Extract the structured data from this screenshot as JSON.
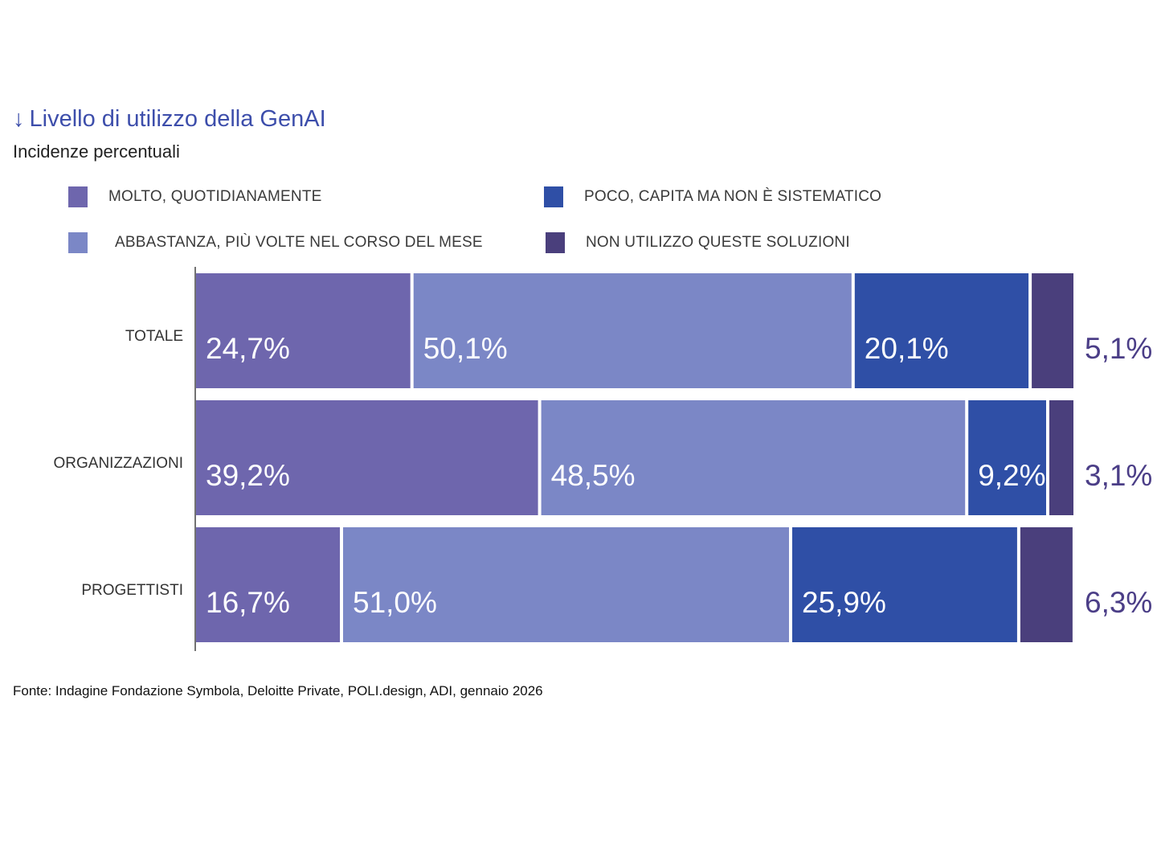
{
  "header": {
    "arrow_glyph": "↓",
    "title": "Livello di utilizzo della GenAI",
    "subtitle": "Incidenze percentuali"
  },
  "legend": [
    {
      "label": "MOLTO, QUOTIDIANAMENTE",
      "color": "#6e66ad"
    },
    {
      "label": "POCO, CAPITA MA NON È SISTEMATICO",
      "color": "#2f4fa6"
    },
    {
      "label": "ABBASTANZA, PIÙ VOLTE NEL CORSO DEL MESE",
      "color": "#7b87c6"
    },
    {
      "label": "NON UTILIZZO QUESTE SOLUZIONI",
      "color": "#4a3f7c"
    }
  ],
  "chart_data": {
    "type": "bar",
    "orientation": "horizontal",
    "stacked": true,
    "title": "Livello di utilizzo della GenAI",
    "subtitle": "Incidenze percentuali",
    "categories": [
      "TOTALE",
      "ORGANIZZAZIONI",
      "PROGETTISTI"
    ],
    "series": [
      {
        "name": "MOLTO, QUOTIDIANAMENTE",
        "color": "#6e66ad",
        "values": [
          24.7,
          39.2,
          16.7
        ],
        "labels": [
          "24,7%",
          "39,2%",
          "16,7%"
        ]
      },
      {
        "name": "ABBASTANZA, PIÙ VOLTE NEL CORSO DEL MESE",
        "color": "#7b87c6",
        "values": [
          50.1,
          48.5,
          51.0
        ],
        "labels": [
          "50,1%",
          "48,5%",
          "51,0%"
        ]
      },
      {
        "name": "POCO, CAPITA MA NON È SISTEMATICO",
        "color": "#2f4fa6",
        "values": [
          20.1,
          9.2,
          25.9
        ],
        "labels": [
          "20,1%",
          "9,2%",
          "25,9%"
        ]
      },
      {
        "name": "NON UTILIZZO QUESTE SOLUZIONI",
        "color": "#4a3f7c",
        "values": [
          5.1,
          3.1,
          6.3
        ],
        "labels": [
          "5,1%",
          "3,1%",
          "6,3%"
        ]
      }
    ],
    "xlim": [
      0,
      100
    ],
    "grid": false,
    "legend_position": "top"
  },
  "footer": {
    "source": "Fonte: Indagine Fondazione Symbola, Deloitte Private, POLI.design, ADI, gennaio 2026"
  }
}
